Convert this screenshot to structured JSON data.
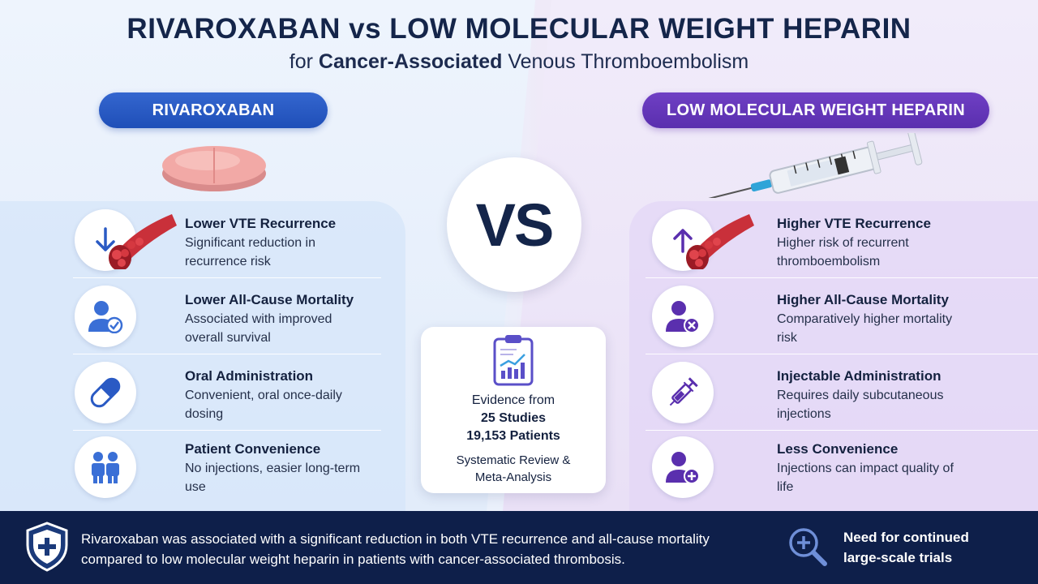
{
  "header": {
    "title": "RIVAROXABAN vs LOW MOLECULAR WEIGHT HEPARIN",
    "subtitle_prefix": "for",
    "subtitle_bold": "Cancer-Associated",
    "subtitle_suffix": "Venous Thromboembolism"
  },
  "left": {
    "label": "RIVAROXABAN",
    "color": "#2a5ac4",
    "items": [
      {
        "icon": "arrow-down-icon",
        "title": "Lower VTE Recurrence",
        "desc": "Significant reduction in recurrence risk"
      },
      {
        "icon": "person-check-icon",
        "title": "Lower All-Cause Mortality",
        "desc": "Associated with improved overall survival"
      },
      {
        "icon": "capsule-icon",
        "title": "Oral Administration",
        "desc": "Convenient, oral once-daily dosing"
      },
      {
        "icon": "people-icon",
        "title": "Patient Convenience",
        "desc": "No injections, easier long-term use"
      }
    ]
  },
  "right": {
    "label": "LOW MOLECULAR WEIGHT HEPARIN",
    "color": "#6535b8",
    "items": [
      {
        "icon": "arrow-up-icon",
        "title": "Higher VTE Recurrence",
        "desc": "Higher risk of recurrent thromboembolism"
      },
      {
        "icon": "person-x-icon",
        "title": "Higher All-Cause Mortality",
        "desc": "Comparatively higher mortality risk"
      },
      {
        "icon": "syringe-icon",
        "title": "Injectable Administration",
        "desc": "Requires daily subcutaneous injections"
      },
      {
        "icon": "person-plus-icon",
        "title": "Less Convenience",
        "desc": "Injections can impact quality of life"
      }
    ]
  },
  "vs": "VS",
  "evidence": {
    "line1": "Evidence from",
    "studies": "25 Studies",
    "patients": "19,153 Patients",
    "line4": "Systematic Review &",
    "line5": "Meta-Analysis"
  },
  "footer": {
    "t1": "Rivaroxaban",
    "t2": " was associated with a ",
    "t3": "significant reduction",
    "t4": " in both VTE recurrence and all-cause mortality",
    "t5": "compared to low molecular weight heparin in patients with cancer-associated thrombosis.",
    "right_line1": "Need for continued",
    "right_line2": "large-scale trials"
  }
}
